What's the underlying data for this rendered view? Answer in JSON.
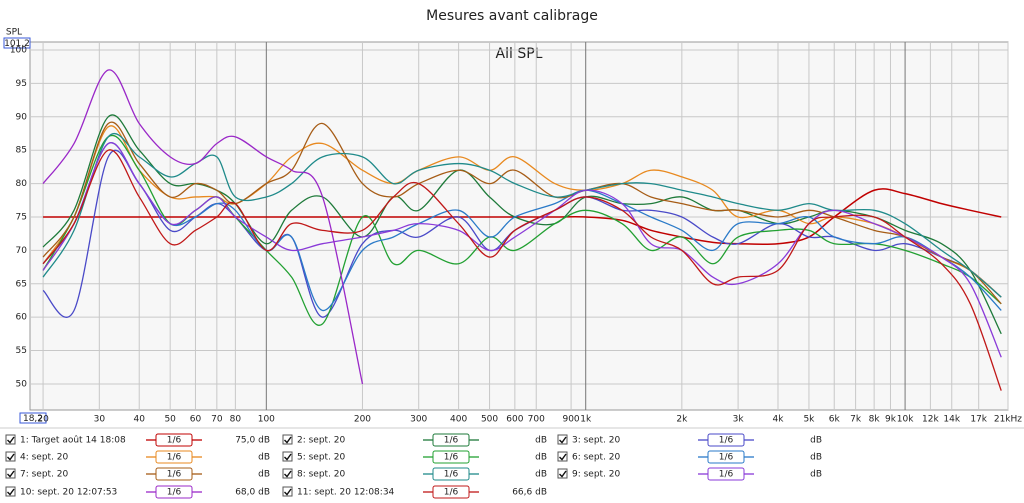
{
  "chart_data": {
    "type": "line",
    "title": "Mesures avant calibrage",
    "subtitle": "All SPL",
    "y_label": "SPL",
    "log_x": true,
    "grid": true,
    "xlim": [
      18.2,
      21000
    ],
    "ylim": [
      46.1,
      101.2
    ],
    "x_start_label": {
      "value": 18.2,
      "label": "18,2"
    },
    "y_top_label": {
      "value": 101.2,
      "label": "101,2"
    },
    "xticks": [
      20,
      30,
      40,
      50,
      60,
      70,
      80,
      100,
      200,
      300,
      400,
      500,
      600,
      700,
      900,
      {
        "value": 1000,
        "label": "1k"
      },
      {
        "value": 2000,
        "label": "2k"
      },
      {
        "value": 3000,
        "label": "3k"
      },
      {
        "value": 4000,
        "label": "4k"
      },
      {
        "value": 5000,
        "label": "5k"
      },
      {
        "value": 6000,
        "label": "6k"
      },
      {
        "value": 7000,
        "label": "7k"
      },
      {
        "value": 8000,
        "label": "8k"
      },
      {
        "value": 9000,
        "label": "9k"
      },
      {
        "value": 10000,
        "label": "10k"
      },
      {
        "value": 12000,
        "label": "12k"
      },
      {
        "value": 14000,
        "label": "14k"
      },
      {
        "value": 17000,
        "label": "17k"
      },
      {
        "value": 21000,
        "label": "21kHz"
      }
    ],
    "yticks": [
      50,
      55,
      60,
      65,
      70,
      75,
      80,
      85,
      90,
      95,
      100
    ],
    "x": [
      20,
      25,
      32,
      40,
      50,
      60,
      70,
      80,
      100,
      120,
      150,
      200,
      250,
      300,
      400,
      500,
      600,
      800,
      1000,
      1300,
      1600,
      2000,
      2500,
      3000,
      4000,
      5000,
      6000,
      8000,
      10000,
      13000,
      16000,
      20000
    ],
    "series": [
      {
        "name": "1: Target août 14 18:08",
        "color": "#c00000",
        "smoothing": "1/6",
        "level": "75,0 dB",
        "values": [
          75,
          75,
          75,
          75,
          75,
          75,
          75,
          75,
          75,
          75,
          75,
          75,
          75,
          75,
          75,
          75,
          75,
          75,
          75,
          74.5,
          73,
          72,
          71.2,
          71,
          71,
          72,
          75,
          79,
          78.5,
          77,
          76,
          75
        ]
      },
      {
        "name": "2: sept. 20",
        "color": "#1e7a3a",
        "smoothing": "1/6",
        "level": "dB",
        "values": [
          70.5,
          76,
          90,
          85,
          80,
          80,
          79,
          77,
          71,
          76,
          78,
          72,
          78,
          76,
          82,
          78,
          75,
          74,
          78,
          77,
          77,
          78,
          76,
          76,
          74,
          75,
          76,
          75,
          73,
          71,
          67,
          57.5
        ]
      },
      {
        "name": "3: sept. 20",
        "color": "#4a4ac8",
        "smoothing": "1/6",
        "level": "dB",
        "values": [
          64,
          61,
          84,
          80,
          73,
          75,
          77,
          75,
          70,
          72,
          60,
          71,
          73,
          72,
          75,
          70,
          73,
          76,
          78,
          76,
          76,
          75,
          72,
          71,
          74,
          72,
          72,
          70,
          71,
          69,
          67,
          63
        ]
      },
      {
        "name": "4: sept. 20",
        "color": "#e8891f",
        "smoothing": "1/6",
        "level": "dB",
        "values": [
          68,
          75,
          88.5,
          82,
          78,
          78,
          78,
          77,
          80,
          84,
          86,
          82,
          80,
          82,
          84,
          82,
          84,
          80,
          79,
          80,
          82,
          81,
          79,
          75,
          76,
          74,
          75,
          74,
          72,
          69,
          67,
          63
        ]
      },
      {
        "name": "5: sept. 20",
        "color": "#22a032",
        "smoothing": "1/6",
        "level": "dB",
        "values": [
          67,
          75,
          87,
          82,
          74,
          76,
          78,
          75,
          70,
          66,
          59,
          75,
          68,
          70,
          68,
          72,
          70,
          74,
          76,
          74,
          70,
          72,
          68,
          72,
          73,
          73,
          71,
          71,
          70,
          68,
          66,
          62
        ]
      },
      {
        "name": "6: sept. 20",
        "color": "#2a7ac8",
        "smoothing": "1/6",
        "level": "dB",
        "values": [
          68,
          74,
          86,
          80,
          74,
          75,
          77,
          76,
          70,
          72,
          61,
          70,
          72,
          74,
          76,
          72,
          75,
          77,
          79,
          77,
          75,
          73,
          70,
          74,
          74,
          75,
          72,
          71,
          72,
          69,
          66,
          61
        ]
      },
      {
        "name": "7: sept. 20",
        "color": "#a65c16",
        "smoothing": "1/6",
        "level": "dB",
        "values": [
          69,
          75,
          89,
          83,
          78,
          80,
          79,
          77,
          80,
          82,
          89,
          80,
          78,
          80,
          82,
          80,
          82,
          78,
          79,
          80,
          78,
          77,
          76,
          76,
          75,
          76,
          75,
          73,
          72,
          69,
          67,
          62
        ]
      },
      {
        "name": "8: sept. 20",
        "color": "#1f8a8a",
        "smoothing": "1/6",
        "level": "dB",
        "values": [
          66,
          73,
          87,
          84,
          81,
          83,
          84,
          78,
          78,
          80,
          84,
          84,
          80,
          82,
          83,
          82,
          80,
          78,
          79,
          80,
          80,
          79,
          78,
          77,
          76,
          77,
          76,
          76,
          74,
          70,
          67,
          63
        ]
      },
      {
        "name": "9: sept. 20",
        "color": "#8a3ad8",
        "smoothing": "1/6",
        "level": "dB",
        "values": [
          67,
          74,
          86,
          80,
          74,
          76,
          78,
          75,
          72,
          70,
          71,
          72,
          73,
          74,
          73,
          70,
          72,
          76,
          79,
          77,
          71,
          70,
          66,
          65,
          68,
          74,
          76,
          74,
          72,
          69,
          65,
          54
        ]
      },
      {
        "name": "10: sept. 20 12:07:53",
        "color": "#9a28c8",
        "smoothing": "1/6",
        "level": "68,0 dB",
        "values": [
          80,
          86,
          97,
          89,
          84,
          83,
          86,
          87,
          84,
          82,
          78,
          50,
          null,
          null,
          null,
          null,
          null,
          null,
          null,
          null,
          null,
          null,
          null,
          null,
          null,
          null,
          null,
          null,
          null,
          null,
          null,
          null
        ]
      },
      {
        "name": "11: sept. 20 12:08:34",
        "color": "#c01818",
        "smoothing": "1/6",
        "level": "66,6 dB",
        "values": [
          68,
          74,
          85,
          78,
          71,
          73,
          75,
          77,
          70,
          74,
          73,
          73,
          78,
          80,
          74,
          69,
          73,
          76,
          78,
          76,
          72,
          70,
          65,
          66,
          67,
          74,
          75,
          75,
          72,
          68,
          62,
          49
        ]
      }
    ]
  }
}
